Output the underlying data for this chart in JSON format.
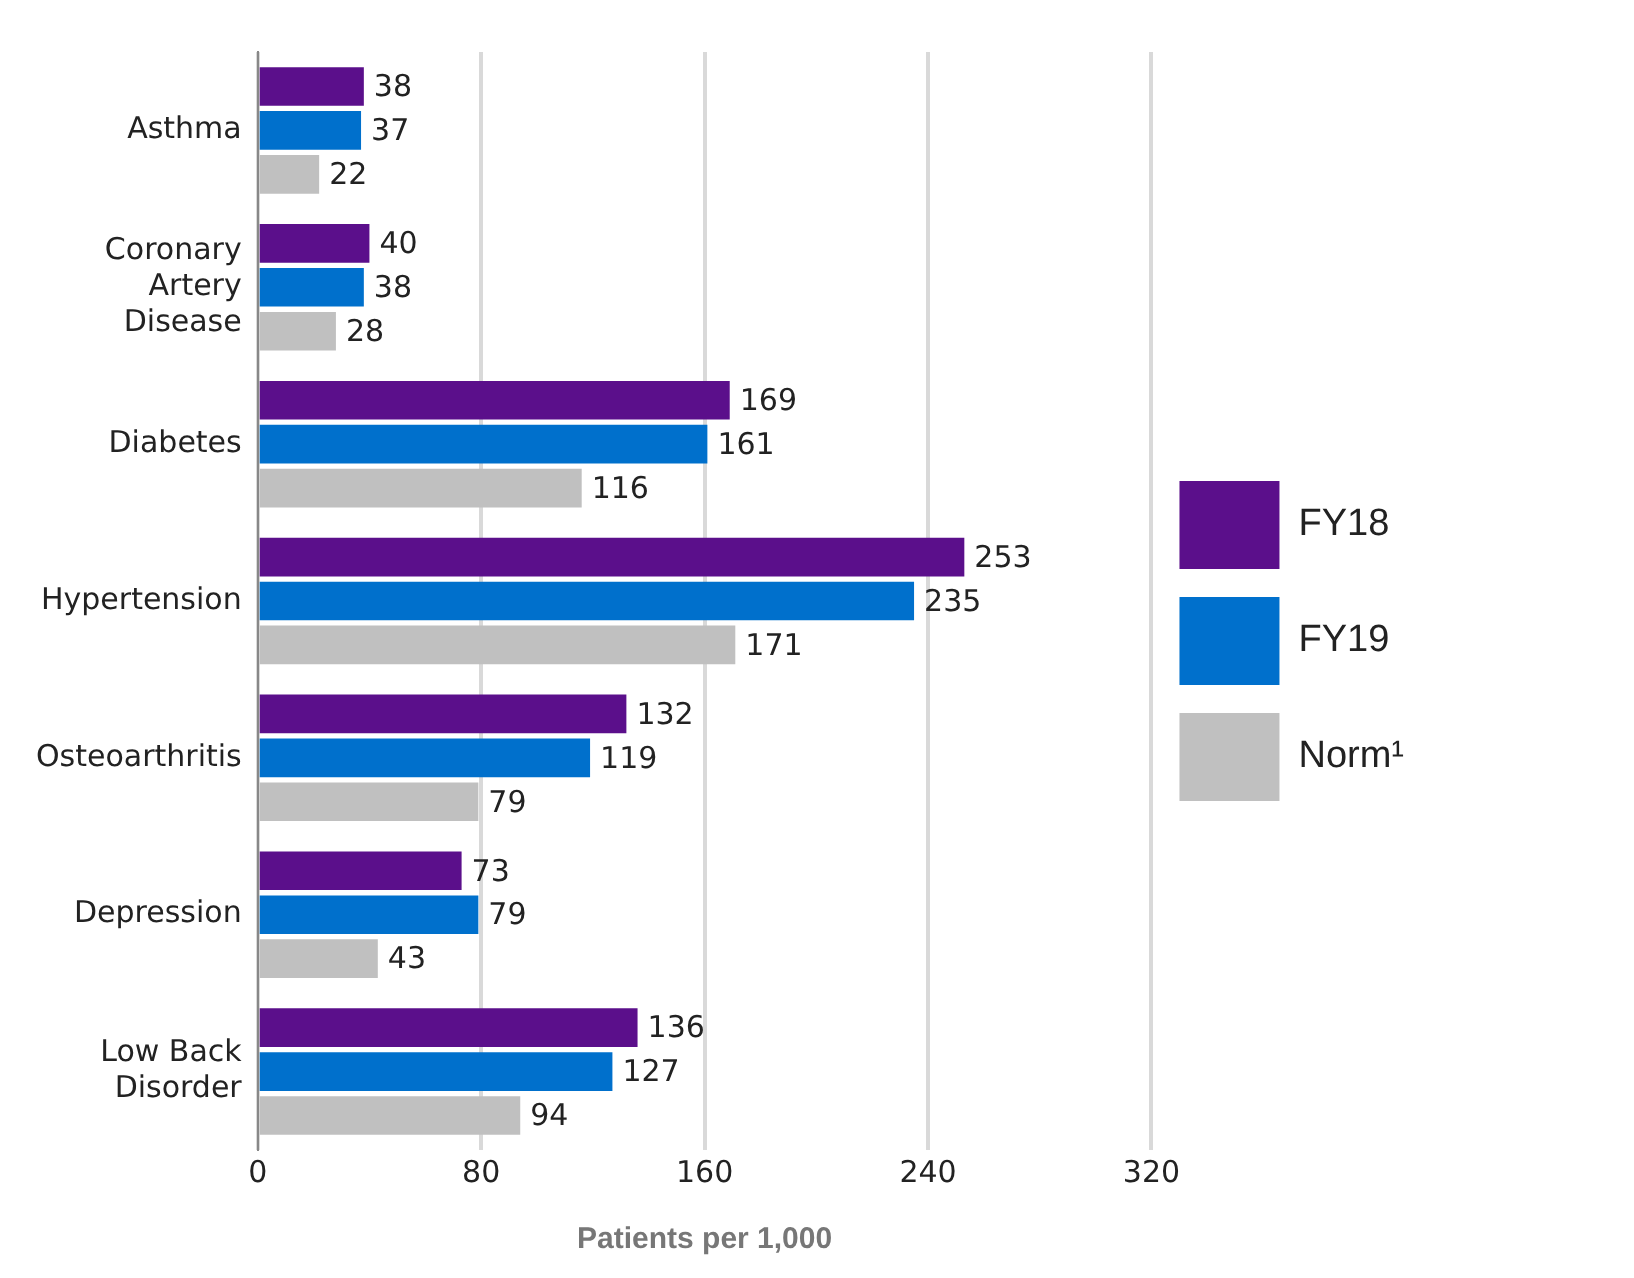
{
  "chart_data": {
    "type": "bar",
    "orientation": "horizontal",
    "categories": [
      "Asthma",
      "Coronary Artery Disease",
      "Diabetes",
      "Hypertension",
      "Osteoarthritis",
      "Depression",
      "Low Back Disorder"
    ],
    "series": [
      {
        "name": "FY18",
        "color": "#5b0f8b",
        "values": [
          38,
          40,
          169,
          253,
          132,
          73,
          136
        ]
      },
      {
        "name": "FY19",
        "color": "#0070cc",
        "values": [
          37,
          38,
          161,
          235,
          119,
          79,
          127
        ]
      },
      {
        "name": "Norm¹",
        "color": "#c0c0c0",
        "values": [
          22,
          28,
          116,
          171,
          79,
          43,
          94
        ]
      }
    ],
    "xlim": [
      0,
      320
    ],
    "xticks": [
      0,
      80,
      160,
      240,
      320
    ],
    "xlabel": "Patients per 1,000",
    "grid": "x",
    "legend": "right",
    "data_labels": true
  }
}
